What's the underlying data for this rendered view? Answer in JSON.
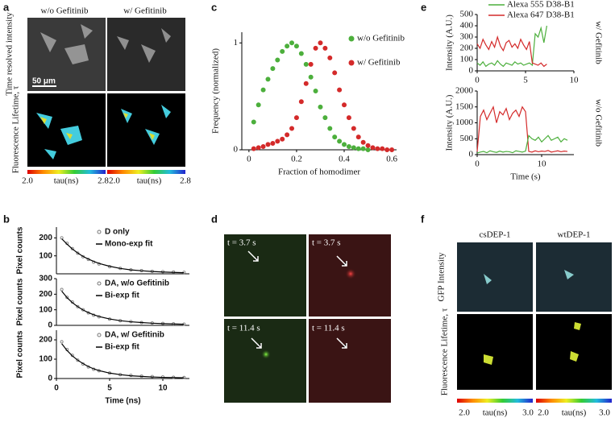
{
  "panel_a": {
    "label": "a",
    "columns": [
      "w/o  Gefitinib",
      "w/ Gefitinib"
    ],
    "rows": [
      "Time resolved intensity",
      "Fluorescence Lifetime, τ"
    ],
    "scale_bar": "50 μm",
    "colorbar": {
      "min": "2.0",
      "label": "tau(ns)",
      "max": "2.8"
    }
  },
  "panel_d": {
    "label": "d",
    "time_labels": [
      "t = 3.7 s",
      "t = 11.4 s"
    ]
  },
  "panel_f": {
    "label": "f",
    "columns": [
      "csDEP-1",
      "wtDEP-1"
    ],
    "rows": [
      "GFP Intensity",
      "Fluorescence Lifetime, τ"
    ],
    "colorbar": {
      "min": "2.0",
      "label": "tau(ns)",
      "max": "3.0"
    }
  },
  "chart_data": [
    {
      "type": "line",
      "label": "b",
      "ylabel": "Pixel counts",
      "legend": "upper right",
      "xlim": [
        0,
        12.5
      ],
      "ylim": [
        0,
        260
      ],
      "yticks": [
        100,
        200
      ],
      "x": [
        0.5,
        1,
        1.5,
        2,
        2.5,
        3,
        3.5,
        4,
        5,
        6,
        7,
        8,
        9,
        10,
        11,
        12
      ],
      "series": [
        {
          "name": "D only",
          "color": "#777777",
          "mode": "markers",
          "values": [
            200,
            170,
            140,
            115,
            95,
            80,
            65,
            55,
            40,
            30,
            22,
            18,
            14,
            12,
            10,
            8
          ]
        },
        {
          "name": "Mono-exp fit",
          "color": "#000000",
          "mode": "line",
          "values": [
            195,
            165,
            138,
            116,
            97,
            82,
            69,
            58,
            42,
            30,
            22,
            17,
            13,
            10,
            8,
            6
          ]
        }
      ]
    },
    {
      "type": "line",
      "ylabel": "Pixel counts",
      "legend": "upper right",
      "xlim": [
        0,
        12.5
      ],
      "ylim": [
        0,
        300
      ],
      "yticks": [
        0,
        100,
        200,
        300
      ],
      "x": [
        0.5,
        1,
        1.5,
        2,
        2.5,
        3,
        3.5,
        4,
        5,
        6,
        7,
        8,
        9,
        10,
        11,
        12
      ],
      "series": [
        {
          "name": "DA, w/o Gefitinib",
          "color": "#777777",
          "mode": "markers",
          "values": [
            230,
            180,
            150,
            120,
            100,
            80,
            65,
            55,
            40,
            30,
            24,
            18,
            15,
            12,
            10,
            8
          ]
        },
        {
          "name": "Bi-exp fit",
          "color": "#000000",
          "mode": "line",
          "values": [
            220,
            178,
            146,
            120,
            99,
            82,
            68,
            57,
            41,
            30,
            23,
            18,
            14,
            11,
            9,
            7
          ]
        }
      ]
    },
    {
      "type": "line",
      "ylabel": "Pixel counts",
      "xlabel": "Time (ns)",
      "legend": "upper right",
      "xlim": [
        0,
        12.5
      ],
      "ylim": [
        0,
        250
      ],
      "yticks": [
        0,
        100,
        200
      ],
      "xticks": [
        0,
        5,
        10
      ],
      "x": [
        0.5,
        1,
        1.5,
        2,
        2.5,
        3,
        3.5,
        4,
        5,
        6,
        7,
        8,
        9,
        10,
        11,
        12
      ],
      "series": [
        {
          "name": "DA, w/ Gefitinib",
          "color": "#777777",
          "mode": "markers",
          "values": [
            190,
            150,
            120,
            95,
            75,
            60,
            48,
            40,
            28,
            20,
            16,
            12,
            10,
            8,
            6,
            5
          ]
        },
        {
          "name": "Bi-exp fit",
          "color": "#000000",
          "mode": "line",
          "values": [
            180,
            145,
            117,
            95,
            77,
            62,
            50,
            41,
            28,
            20,
            14,
            11,
            8,
            6,
            5,
            4
          ]
        }
      ]
    },
    {
      "type": "scatter",
      "label": "c",
      "ylabel": "Frequency (normalized)",
      "xlabel": "Fraction of homodimer",
      "legend": "right",
      "xlim": [
        -0.03,
        0.62
      ],
      "ylim": [
        0,
        1.1
      ],
      "xticks": [
        0,
        0.2,
        0.4,
        0.6
      ],
      "yticks": [
        0,
        1
      ],
      "series": [
        {
          "name": "w/o Gefitinib",
          "color": "#4caf3c",
          "mode": "markers",
          "x": [
            0.02,
            0.04,
            0.06,
            0.08,
            0.1,
            0.12,
            0.14,
            0.16,
            0.18,
            0.2,
            0.22,
            0.24,
            0.26,
            0.28,
            0.3,
            0.32,
            0.34,
            0.36,
            0.38,
            0.4,
            0.42,
            0.44,
            0.46,
            0.48,
            0.5
          ],
          "values": [
            0.26,
            0.42,
            0.56,
            0.66,
            0.76,
            0.84,
            0.92,
            0.97,
            1.0,
            0.97,
            0.9,
            0.8,
            0.68,
            0.55,
            0.4,
            0.3,
            0.2,
            0.12,
            0.08,
            0.05,
            0.03,
            0.02,
            0.01,
            0.01,
            0
          ]
        },
        {
          "name": "w/ Gefitinib",
          "color": "#d42a2a",
          "mode": "markers",
          "x": [
            0.02,
            0.04,
            0.06,
            0.08,
            0.1,
            0.12,
            0.14,
            0.16,
            0.18,
            0.2,
            0.22,
            0.24,
            0.26,
            0.28,
            0.3,
            0.32,
            0.34,
            0.36,
            0.38,
            0.4,
            0.42,
            0.44,
            0.46,
            0.48,
            0.5,
            0.52,
            0.54,
            0.56,
            0.58,
            0.6
          ],
          "values": [
            0.01,
            0.02,
            0.03,
            0.05,
            0.06,
            0.08,
            0.1,
            0.14,
            0.2,
            0.3,
            0.45,
            0.62,
            0.8,
            0.95,
            1.0,
            0.95,
            0.86,
            0.72,
            0.56,
            0.42,
            0.3,
            0.2,
            0.12,
            0.07,
            0.04,
            0.02,
            0.01,
            0.01,
            0,
            0
          ]
        }
      ]
    },
    {
      "type": "line",
      "label": "e",
      "ylabel": "Intensity (A.U.)",
      "annotation": "w/ Gefitinib",
      "legend": "upper center",
      "xlim": [
        0,
        10
      ],
      "ylim": [
        0,
        500
      ],
      "xticks": [
        0,
        5,
        10
      ],
      "yticks": [
        0,
        100,
        200,
        300,
        400,
        500
      ],
      "x": [
        0,
        0.3,
        0.6,
        0.9,
        1.2,
        1.5,
        1.8,
        2.1,
        2.4,
        2.7,
        3,
        3.3,
        3.6,
        3.9,
        4.2,
        4.5,
        4.8,
        5.1,
        5.4,
        5.7,
        6,
        6.3,
        6.6,
        6.9,
        7.2
      ],
      "series": [
        {
          "name": "Alexa 555 D38-B1",
          "color": "#4caf3c",
          "mode": "line",
          "values": [
            70,
            50,
            80,
            40,
            60,
            70,
            50,
            90,
            60,
            40,
            70,
            60,
            50,
            80,
            60,
            70,
            50,
            60,
            70,
            50,
            330,
            300,
            380,
            250,
            400
          ]
        },
        {
          "name": "Alexa 647 D38-B1",
          "color": "#d42a2a",
          "mode": "line",
          "values": [
            240,
            200,
            280,
            230,
            190,
            260,
            210,
            300,
            220,
            180,
            250,
            270,
            210,
            240,
            200,
            280,
            230,
            190,
            260,
            70,
            60,
            50,
            70,
            40,
            60
          ]
        }
      ]
    },
    {
      "type": "line",
      "ylabel": "Intensity (A.U.)",
      "xlabel": "Time (s)",
      "annotation": "w/o Gefitinib",
      "xlim": [
        0,
        15
      ],
      "ylim": [
        0,
        2000
      ],
      "xticks": [
        0,
        10
      ],
      "yticks": [
        0,
        500,
        1000,
        1500,
        2000
      ],
      "x": [
        0,
        0.5,
        1,
        1.5,
        2,
        2.5,
        3,
        3.5,
        4,
        4.5,
        5,
        5.5,
        6,
        6.5,
        7,
        7.5,
        8,
        8.5,
        9,
        9.5,
        10,
        10.5,
        11,
        11.5,
        12,
        12.5,
        13,
        13.5,
        14
      ],
      "series": [
        {
          "color": "#d42a2a",
          "mode": "line",
          "values": [
            100,
            1200,
            1400,
            1100,
            1300,
            1500,
            1000,
            1350,
            1250,
            1450,
            1100,
            1300,
            1400,
            1200,
            1500,
            1350,
            100,
            80,
            120,
            90,
            110,
            100,
            130,
            80,
            100,
            120,
            90,
            110,
            100
          ]
        },
        {
          "color": "#4caf3c",
          "mode": "line",
          "values": [
            50,
            80,
            100,
            60,
            120,
            90,
            70,
            110,
            80,
            100,
            90,
            60,
            120,
            100,
            80,
            110,
            600,
            500,
            450,
            550,
            400,
            500,
            600,
            450,
            500,
            550,
            400,
            500,
            450
          ]
        }
      ]
    }
  ]
}
